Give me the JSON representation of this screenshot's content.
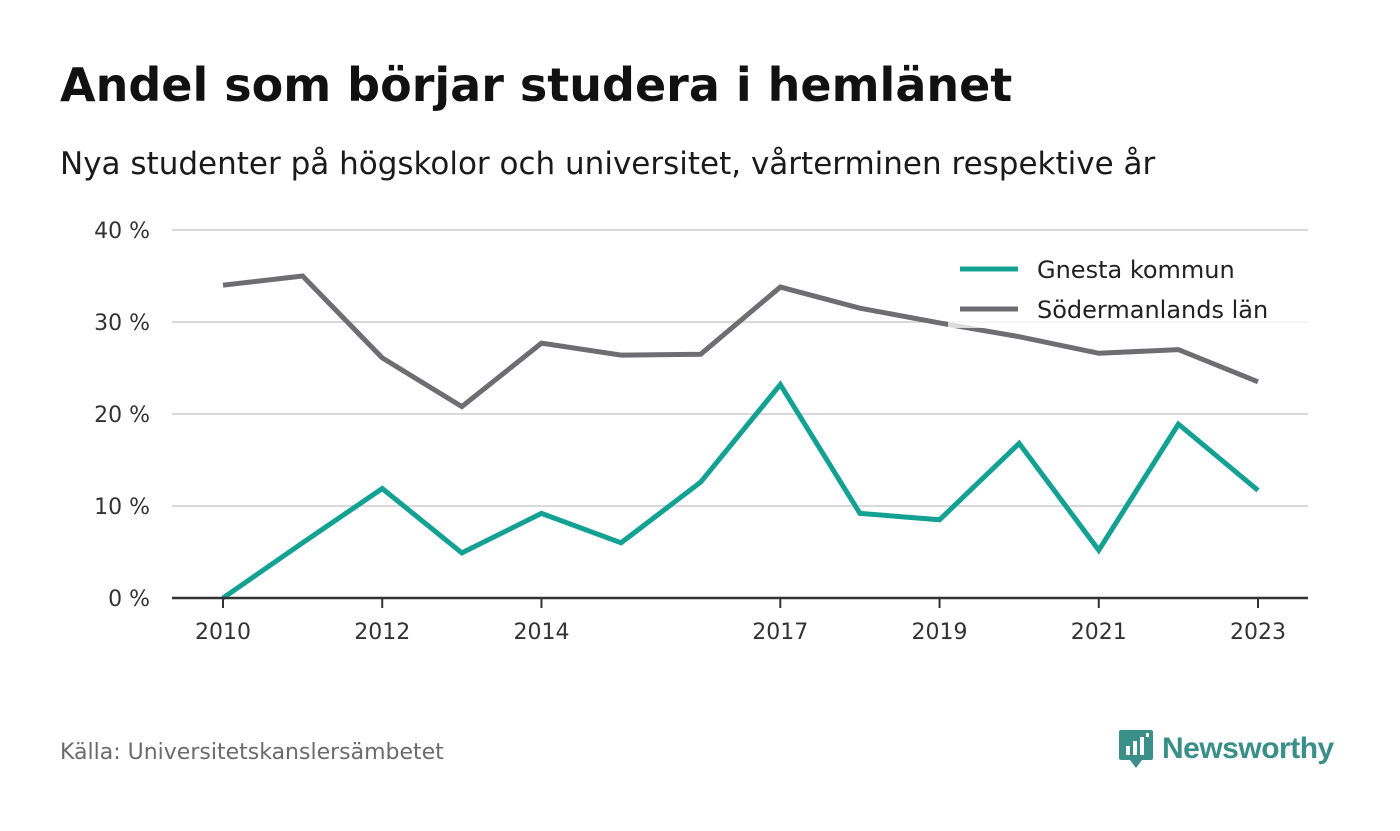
{
  "header": {
    "title": "Andel som börjar studera i hemlänet",
    "subtitle": "Nya studenter på högskolor och universitet, vårterminen respektive år"
  },
  "footer": {
    "source": "Källa: Universitetskanslersämbetet",
    "brand": "Newsworthy",
    "brand_icon": "bar-chart-speech-bubble-icon"
  },
  "colors": {
    "gnesta": "#12a192",
    "sodermanland": "#6e6d72",
    "grid": "#d9d9d9",
    "axis": "#333333",
    "brand": "#3a8f88"
  },
  "chart_data": {
    "type": "line",
    "x": [
      2010,
      2011,
      2012,
      2013,
      2014,
      2015,
      2016,
      2017,
      2018,
      2019,
      2020,
      2021,
      2022,
      2023
    ],
    "x_tick_labels": [
      "2010",
      "2012",
      "2014",
      "2017",
      "2019",
      "2021",
      "2023"
    ],
    "x_tick_values": [
      2010,
      2012,
      2014,
      2017,
      2019,
      2021,
      2023
    ],
    "y_tick_labels": [
      "0 %",
      "10 %",
      "20 %",
      "30 %",
      "40 %"
    ],
    "y_tick_values": [
      0,
      10,
      20,
      30,
      40
    ],
    "ylim": [
      0,
      40
    ],
    "grid": true,
    "legend_position": "top-right",
    "series": [
      {
        "name": "Gnesta kommun",
        "color": "#12a192",
        "values": [
          0,
          6.0,
          11.9,
          4.9,
          9.2,
          6.0,
          12.6,
          23.2,
          9.2,
          8.5,
          16.8,
          5.2,
          18.9,
          11.7
        ]
      },
      {
        "name": "Södermanlands län",
        "color": "#6e6d72",
        "values": [
          34.0,
          35.0,
          26.1,
          20.8,
          27.7,
          26.4,
          26.5,
          33.8,
          31.5,
          29.9,
          28.4,
          26.6,
          27.0,
          23.5
        ]
      }
    ]
  }
}
